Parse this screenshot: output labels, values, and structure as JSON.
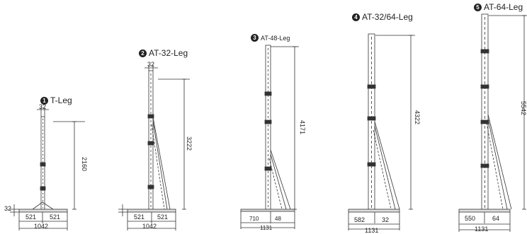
{
  "legs": [
    {
      "number": "1",
      "name": "T-Leg",
      "height": "2160",
      "width": "32",
      "base_left": "521",
      "base_right": "521",
      "base_total": "1042",
      "base_height": "32"
    },
    {
      "number": "2",
      "name": "AT-32-Leg",
      "height": "3222",
      "width": "32",
      "base_left": "521",
      "base_right": "521",
      "base_total": "1042"
    },
    {
      "number": "3",
      "name": "AT-48-Leg",
      "height": "4171",
      "base_left": "710",
      "base_right": "48",
      "base_total": "1131"
    },
    {
      "number": "4",
      "name": "AT-32/64-Leg",
      "height": "4322",
      "base_left": "582",
      "base_right": "32",
      "base_total": "1131"
    },
    {
      "number": "5",
      "name": "AT-64-Leg",
      "height": "5542",
      "base_left": "550",
      "base_right": "64",
      "base_total": "1131"
    }
  ]
}
